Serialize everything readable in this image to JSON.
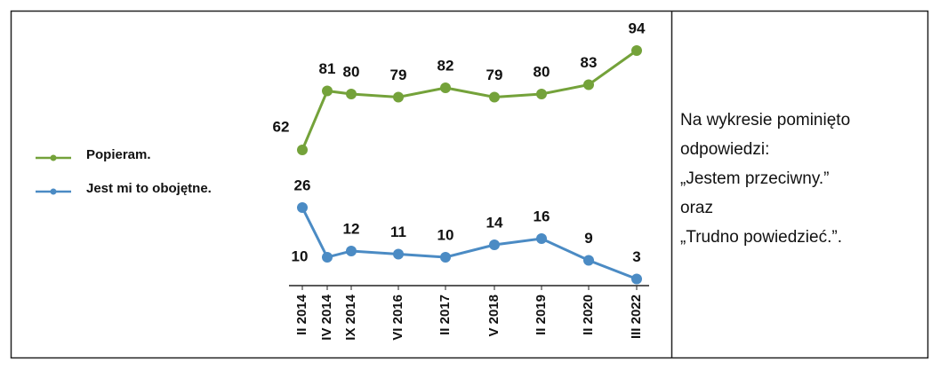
{
  "chart_data": {
    "type": "line",
    "categories": [
      "II 2014",
      "IV 2014",
      "IX 2014",
      "VI 2016",
      "II 2017",
      "V 2018",
      "II 2019",
      "II 2020",
      "III 2022"
    ],
    "series": [
      {
        "name": "Popieram.",
        "color": "#74a23a",
        "values": [
          62,
          81,
          80,
          79,
          82,
          79,
          80,
          83,
          94
        ]
      },
      {
        "name": "Jest mi to obojętne.",
        "color": "#4b8bc4",
        "values": [
          26,
          10,
          12,
          11,
          10,
          14,
          16,
          9,
          3
        ]
      }
    ],
    "legend": "left"
  },
  "note": [
    "Na wykresie pominięto",
    "odpowiedzi:",
    "„Jestem przeciwny.”",
    "oraz",
    "„Trudno powiedzieć.”."
  ]
}
